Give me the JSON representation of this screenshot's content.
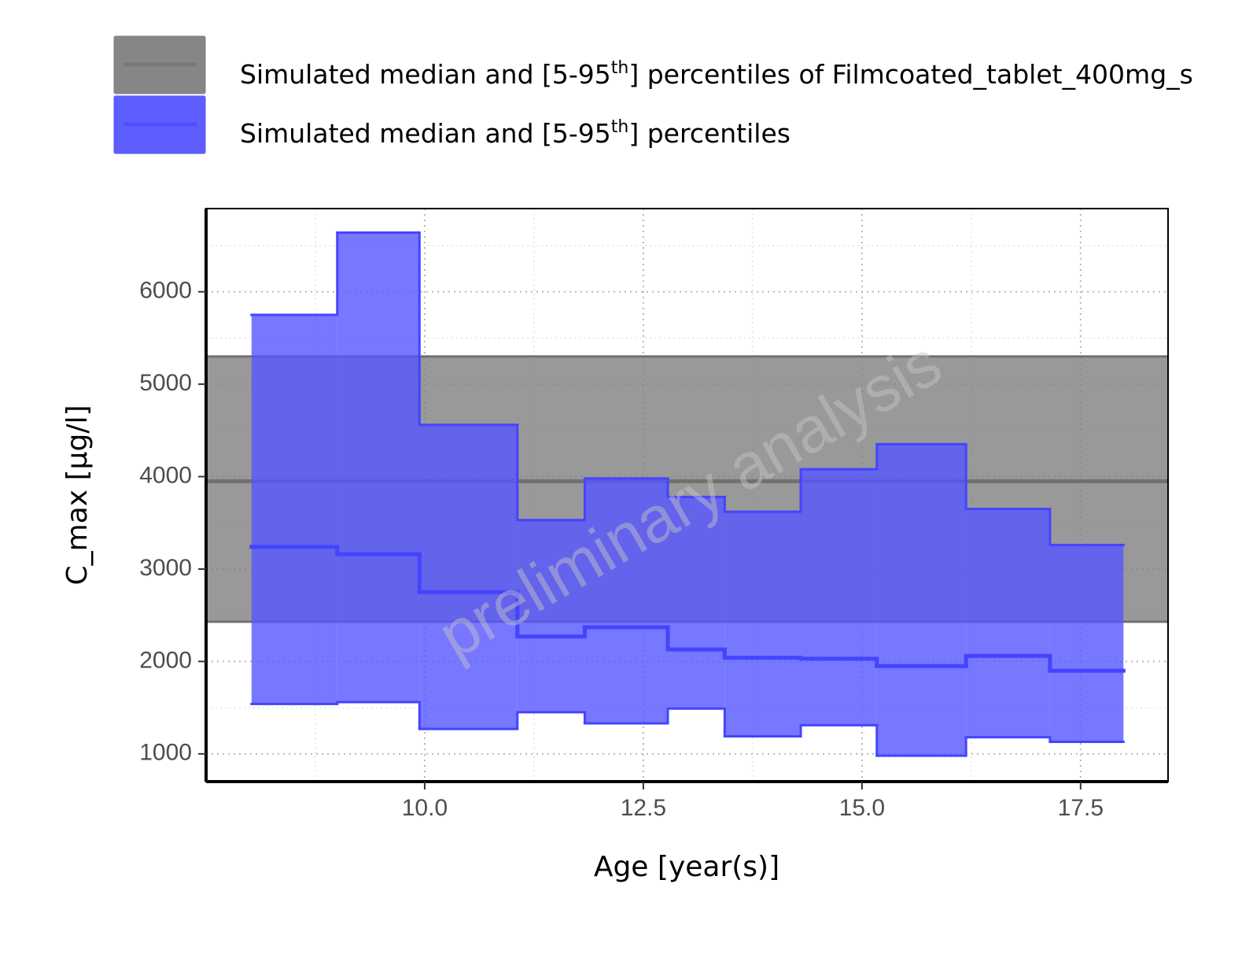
{
  "chart_data": {
    "type": "step-ribbon",
    "x_label": "Age [year(s)]",
    "y_label": "C_max [µg/l]",
    "watermark": "preliminary analysis",
    "x": [
      8.02,
      9.0,
      9.94,
      11.06,
      11.83,
      12.78,
      13.43,
      14.3,
      15.17,
      16.19,
      17.15,
      17.99
    ],
    "reference": {
      "name": [
        "Simulated median and [5-95",
        "th",
        "] percentiles of Filmcoated_tablet_400mg_s"
      ],
      "color": "#808080",
      "line_color": "#707070",
      "upper": 5300,
      "median": 3950,
      "lower": 2430
    },
    "series": [
      {
        "name": [
          "Simulated median and [5-95",
          "th",
          "] percentiles"
        ],
        "color": "#5555ff",
        "line_color": "#4444ff",
        "upper": [
          5750,
          6640,
          4560,
          3530,
          3980,
          3780,
          3620,
          4080,
          4350,
          3650,
          3260
        ],
        "median": [
          3240,
          3160,
          2750,
          2270,
          2370,
          2130,
          2040,
          2030,
          1950,
          2060,
          1900
        ],
        "lower": [
          1540,
          1560,
          1270,
          1450,
          1330,
          1490,
          1190,
          1310,
          980,
          1180,
          1130
        ]
      }
    ],
    "xlim": [
      7.5,
      18.5
    ],
    "ylim": [
      700,
      6900
    ],
    "xticks": [
      {
        "value": 10,
        "label": "10.0"
      },
      12.5,
      {
        "value": 15,
        "label": "15.0"
      },
      17.5
    ],
    "yticks": [
      1000,
      2000,
      3000,
      4000,
      5000,
      6000
    ],
    "x_minor_ticks": [
      8.75,
      11.25,
      13.75,
      16.25
    ],
    "y_minor_ticks": [
      1500,
      2500,
      3500,
      4500,
      5500,
      6500
    ],
    "grid": true
  }
}
